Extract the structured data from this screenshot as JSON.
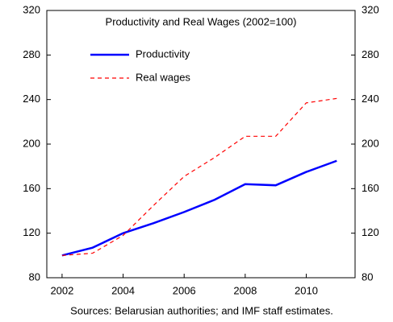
{
  "chart_data": {
    "type": "line",
    "title": "Productivity and Real Wages (2002=100)",
    "note": "Sources: Belarusian authorities; and IMF staff estimates.",
    "x": [
      2002,
      2003,
      2004,
      2005,
      2006,
      2007,
      2008,
      2009,
      2010,
      2011
    ],
    "series": [
      {
        "name": "Productivity",
        "color": "#0000ff",
        "style": "solid",
        "values": [
          100,
          107,
          120,
          129,
          139,
          150,
          164,
          163,
          175,
          185
        ]
      },
      {
        "name": "Real wages",
        "color": "#ff0000",
        "style": "dashed",
        "values": [
          100,
          102,
          118,
          145,
          171,
          188,
          207,
          207,
          237,
          241
        ]
      }
    ],
    "xlim": [
      2001.5,
      2011.6
    ],
    "xticks": [
      2002,
      2004,
      2006,
      2008,
      2010
    ],
    "ylim": [
      80,
      320
    ],
    "yticks": [
      80,
      120,
      160,
      200,
      240,
      280,
      320
    ],
    "y2lim": [
      80,
      320
    ],
    "y2ticks": [
      80,
      120,
      160,
      200,
      240,
      280,
      320
    ],
    "legend": "upper left",
    "grid": false
  }
}
